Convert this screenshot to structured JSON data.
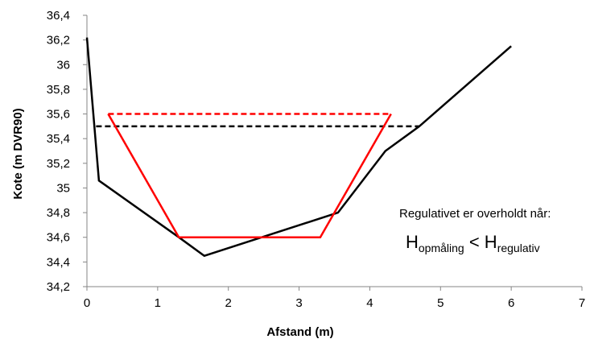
{
  "chart_data": {
    "type": "line",
    "xlabel": "Afstand (m)",
    "ylabel": "Kote (m DVR90)",
    "xlim": [
      0,
      7
    ],
    "ylim": [
      34.2,
      36.4
    ],
    "x_ticks": [
      "0",
      "1",
      "2",
      "3",
      "4",
      "5",
      "6",
      "7"
    ],
    "y_ticks": [
      "34,2",
      "34,4",
      "34,6",
      "34,8",
      "35",
      "35,2",
      "35,4",
      "35,6",
      "35,8",
      "36",
      "36,2",
      "36,4"
    ],
    "grid": false,
    "legend": "none",
    "series": [
      {
        "color": "#000000",
        "style": "solid",
        "points": [
          [
            0,
            36.22
          ],
          [
            0.17,
            35.06
          ],
          [
            1.3,
            34.6
          ],
          [
            1.66,
            34.45
          ],
          [
            3.55,
            34.8
          ],
          [
            4.22,
            35.3
          ],
          [
            4.7,
            35.5
          ],
          [
            6.0,
            36.15
          ]
        ]
      },
      {
        "color": "#000000",
        "style": "dashed",
        "points": [
          [
            0.13,
            35.5
          ],
          [
            4.7,
            35.5
          ]
        ]
      },
      {
        "color": "#ff0000",
        "style": "solid",
        "points": [
          [
            0.3,
            35.6
          ],
          [
            1.3,
            34.6
          ],
          [
            3.3,
            34.6
          ],
          [
            4.3,
            35.6
          ]
        ]
      },
      {
        "color": "#ff0000",
        "style": "dashed",
        "points": [
          [
            0.3,
            35.6
          ],
          [
            4.3,
            35.6
          ]
        ]
      }
    ],
    "annotation": {
      "line1": "Regulativet er overholdt når:",
      "h1": "H",
      "sub1": "opmåling",
      "op": " < ",
      "h2": "H",
      "sub2": "regulativ"
    }
  }
}
